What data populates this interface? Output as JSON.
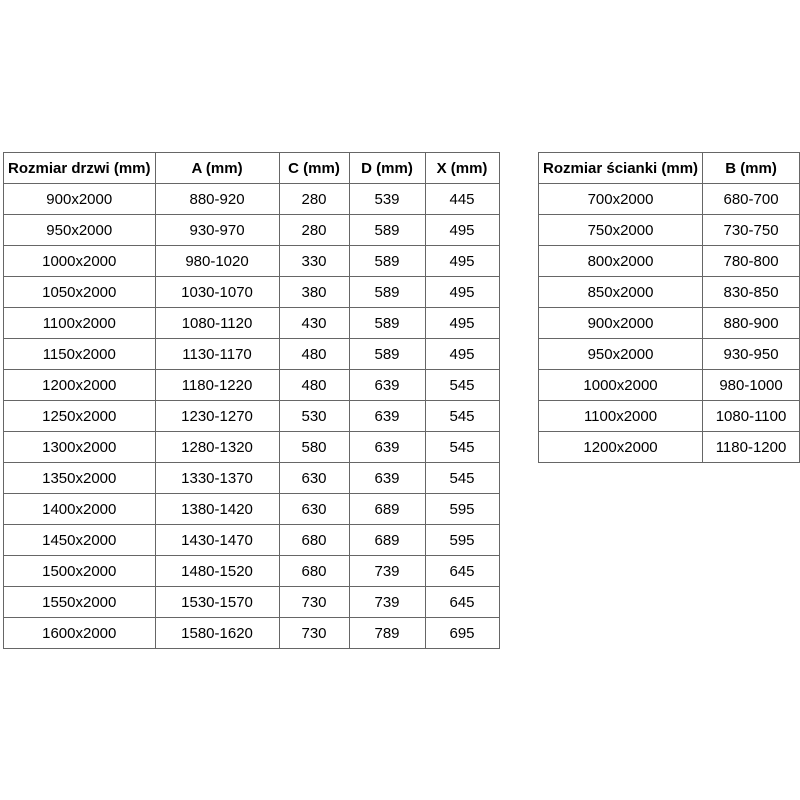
{
  "colors": {
    "background": "#ffffff",
    "border": "#666666",
    "text": "#000000"
  },
  "chart_data": [
    {
      "type": "table",
      "name": "door-sizes",
      "headers": [
        "Rozmiar drzwi (mm)",
        "A (mm)",
        "C (mm)",
        "D (mm)",
        "X (mm)"
      ],
      "rows": [
        [
          "900x2000",
          "880-920",
          "280",
          "539",
          "445"
        ],
        [
          "950x2000",
          "930-970",
          "280",
          "589",
          "495"
        ],
        [
          "1000x2000",
          "980-1020",
          "330",
          "589",
          "495"
        ],
        [
          "1050x2000",
          "1030-1070",
          "380",
          "589",
          "495"
        ],
        [
          "1100x2000",
          "1080-1120",
          "430",
          "589",
          "495"
        ],
        [
          "1150x2000",
          "1130-1170",
          "480",
          "589",
          "495"
        ],
        [
          "1200x2000",
          "1180-1220",
          "480",
          "639",
          "545"
        ],
        [
          "1250x2000",
          "1230-1270",
          "530",
          "639",
          "545"
        ],
        [
          "1300x2000",
          "1280-1320",
          "580",
          "639",
          "545"
        ],
        [
          "1350x2000",
          "1330-1370",
          "630",
          "639",
          "545"
        ],
        [
          "1400x2000",
          "1380-1420",
          "630",
          "689",
          "595"
        ],
        [
          "1450x2000",
          "1430-1470",
          "680",
          "689",
          "595"
        ],
        [
          "1500x2000",
          "1480-1520",
          "680",
          "739",
          "645"
        ],
        [
          "1550x2000",
          "1530-1570",
          "730",
          "739",
          "645"
        ],
        [
          "1600x2000",
          "1580-1620",
          "730",
          "789",
          "695"
        ]
      ]
    },
    {
      "type": "table",
      "name": "wall-panel-sizes",
      "headers": [
        "Rozmiar ścianki (mm)",
        "B (mm)"
      ],
      "rows": [
        [
          "700x2000",
          "680-700"
        ],
        [
          "750x2000",
          "730-750"
        ],
        [
          "800x2000",
          "780-800"
        ],
        [
          "850x2000",
          "830-850"
        ],
        [
          "900x2000",
          "880-900"
        ],
        [
          "950x2000",
          "930-950"
        ],
        [
          "1000x2000",
          "980-1000"
        ],
        [
          "1100x2000",
          "1080-1100"
        ],
        [
          "1200x2000",
          "1180-1200"
        ]
      ]
    }
  ]
}
